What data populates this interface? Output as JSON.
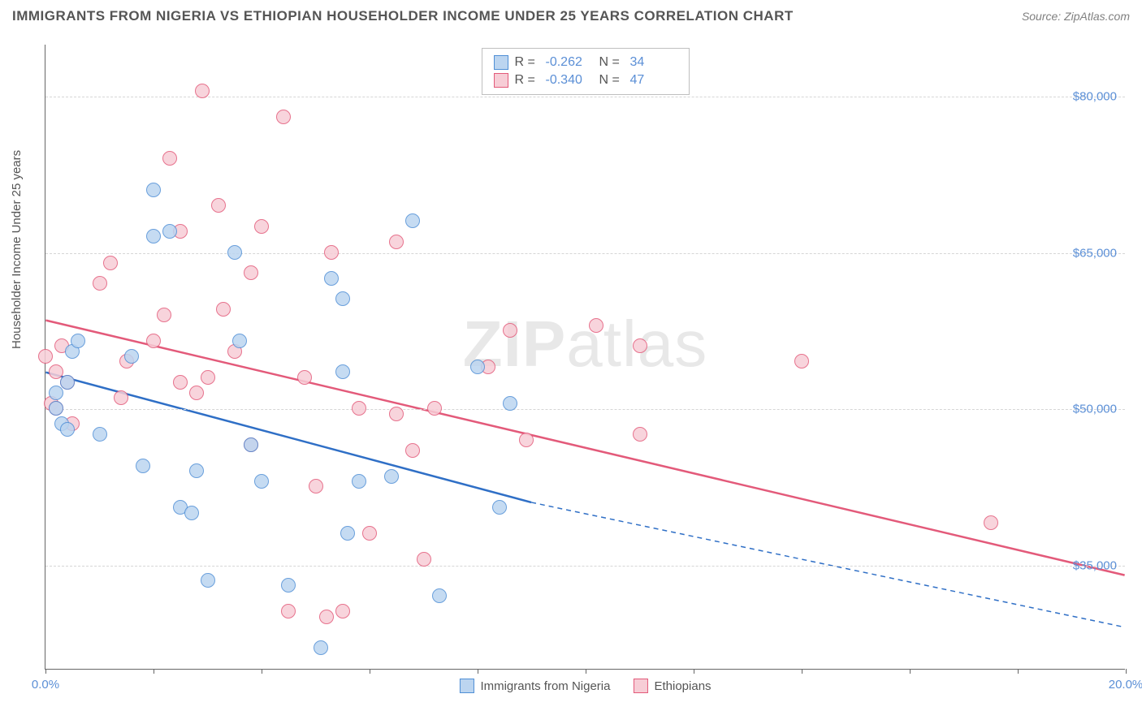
{
  "header": {
    "title": "IMMIGRANTS FROM NIGERIA VS ETHIOPIAN HOUSEHOLDER INCOME UNDER 25 YEARS CORRELATION CHART",
    "source": "Source: ZipAtlas.com"
  },
  "watermark": {
    "bold": "ZIP",
    "rest": "atlas"
  },
  "chart": {
    "type": "scatter",
    "ylabel": "Householder Income Under 25 years",
    "label_fontsize": 15,
    "background_color": "#ffffff",
    "grid_color": "#d6d6d6",
    "axis_color": "#666666",
    "xlim": [
      0.0,
      20.0
    ],
    "ylim": [
      25000,
      85000
    ],
    "yticks": [
      35000,
      50000,
      65000,
      80000
    ],
    "ytick_labels": [
      "$35,000",
      "$50,000",
      "$65,000",
      "$80,000"
    ],
    "xtick_positions": [
      0,
      2,
      4,
      6,
      8,
      10,
      12,
      14,
      16,
      18,
      20
    ],
    "xtick_start_label": "0.0%",
    "xtick_end_label": "20.0%",
    "tick_label_color": "#5b8fd6",
    "marker_style": "circle",
    "marker_size": 18,
    "marker_border_width": 1.5,
    "line_width_solid": 2.5,
    "line_width_dashed": 1.5,
    "dash_pattern": "6 5"
  },
  "series": {
    "nigeria": {
      "label": "Immigrants from Nigeria",
      "fill": "#bcd5f0",
      "stroke": "#4f8fd6",
      "line_color": "#2f6fc6",
      "R": "-0.262",
      "N": "34",
      "points": [
        [
          0.2,
          51500
        ],
        [
          0.2,
          50000
        ],
        [
          0.3,
          48500
        ],
        [
          0.4,
          48000
        ],
        [
          0.4,
          52500
        ],
        [
          0.5,
          55500
        ],
        [
          0.6,
          56500
        ],
        [
          1.0,
          47500
        ],
        [
          1.6,
          55000
        ],
        [
          1.8,
          44500
        ],
        [
          2.0,
          71000
        ],
        [
          2.0,
          66500
        ],
        [
          2.3,
          67000
        ],
        [
          2.5,
          40500
        ],
        [
          2.7,
          40000
        ],
        [
          2.8,
          44000
        ],
        [
          3.0,
          33500
        ],
        [
          3.5,
          65000
        ],
        [
          3.6,
          56500
        ],
        [
          3.8,
          46500
        ],
        [
          4.0,
          43000
        ],
        [
          4.5,
          33000
        ],
        [
          5.1,
          27000
        ],
        [
          5.3,
          62500
        ],
        [
          5.5,
          60500
        ],
        [
          5.5,
          53500
        ],
        [
          5.6,
          38000
        ],
        [
          5.8,
          43000
        ],
        [
          6.4,
          43500
        ],
        [
          6.8,
          68000
        ],
        [
          7.3,
          32000
        ],
        [
          8.0,
          54000
        ],
        [
          8.4,
          40500
        ],
        [
          8.6,
          50500
        ]
      ],
      "trend_solid": {
        "x1": 0.0,
        "y1": 53500,
        "x2": 9.0,
        "y2": 41000
      },
      "trend_dash": {
        "x1": 9.0,
        "y1": 41000,
        "x2": 20.0,
        "y2": 29000
      }
    },
    "ethiopia": {
      "label": "Ethiopians",
      "fill": "#f7cdd6",
      "stroke": "#e35a7a",
      "line_color": "#e35a7a",
      "R": "-0.340",
      "N": "47",
      "points": [
        [
          0.0,
          55000
        ],
        [
          0.1,
          50500
        ],
        [
          0.2,
          50000
        ],
        [
          0.2,
          53500
        ],
        [
          0.3,
          56000
        ],
        [
          0.4,
          52500
        ],
        [
          0.5,
          48500
        ],
        [
          1.0,
          62000
        ],
        [
          1.2,
          64000
        ],
        [
          1.4,
          51000
        ],
        [
          1.5,
          54500
        ],
        [
          2.0,
          56500
        ],
        [
          2.2,
          59000
        ],
        [
          2.3,
          74000
        ],
        [
          2.5,
          52500
        ],
        [
          2.5,
          67000
        ],
        [
          2.8,
          51500
        ],
        [
          2.9,
          80500
        ],
        [
          3.0,
          53000
        ],
        [
          3.2,
          69500
        ],
        [
          3.3,
          59500
        ],
        [
          3.5,
          55500
        ],
        [
          3.8,
          63000
        ],
        [
          3.8,
          46500
        ],
        [
          4.0,
          67500
        ],
        [
          4.4,
          78000
        ],
        [
          4.5,
          30500
        ],
        [
          4.8,
          53000
        ],
        [
          5.0,
          42500
        ],
        [
          5.2,
          30000
        ],
        [
          5.3,
          65000
        ],
        [
          5.5,
          30500
        ],
        [
          5.8,
          50000
        ],
        [
          6.0,
          38000
        ],
        [
          6.5,
          66000
        ],
        [
          6.5,
          49500
        ],
        [
          6.8,
          46000
        ],
        [
          7.0,
          35500
        ],
        [
          7.2,
          50000
        ],
        [
          8.2,
          54000
        ],
        [
          8.6,
          57500
        ],
        [
          8.9,
          47000
        ],
        [
          10.2,
          58000
        ],
        [
          11.0,
          56000
        ],
        [
          11.0,
          47500
        ],
        [
          14.0,
          54500
        ],
        [
          17.5,
          39000
        ]
      ],
      "trend_solid": {
        "x1": 0.0,
        "y1": 58500,
        "x2": 20.0,
        "y2": 34000
      }
    }
  },
  "legend_top": {
    "R_label": "R =",
    "N_label": "N ="
  },
  "legend_bottom": {
    "s1": "Immigrants from Nigeria",
    "s2": "Ethiopians"
  }
}
